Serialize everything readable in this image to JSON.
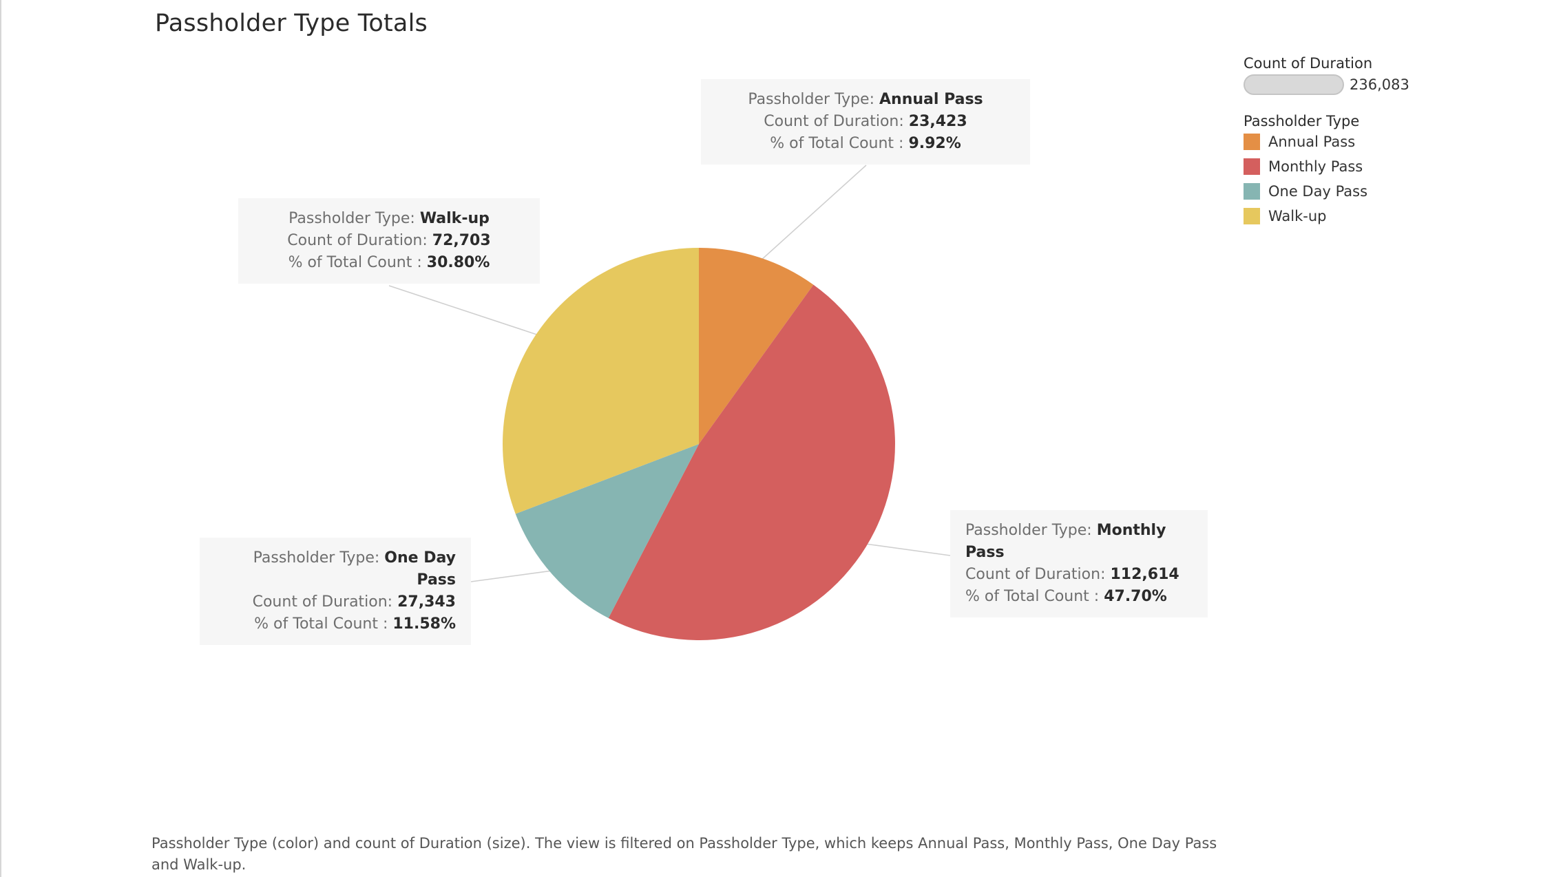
{
  "title": "Passholder Type Totals",
  "chart_data": {
    "type": "pie",
    "series_field": "Passholder Type",
    "measure": "Count of Duration",
    "total": 236083,
    "total_label": "236,083",
    "slices": [
      {
        "name": "Annual Pass",
        "value": 23423,
        "value_label": "23,423",
        "pct_label": "9.92%",
        "color": "#E48F45"
      },
      {
        "name": "Monthly Pass",
        "value": 112614,
        "value_label": "112,614",
        "pct_label": "47.70%",
        "color": "#D45F5E"
      },
      {
        "name": "One Day Pass",
        "value": 27343,
        "value_label": "27,343",
        "pct_label": "11.58%",
        "color": "#86B5B2"
      },
      {
        "name": "Walk-up",
        "value": 72703,
        "value_label": "72,703",
        "pct_label": "30.80%",
        "color": "#E6C85E"
      }
    ],
    "tooltip_labels": {
      "type": "Passholder Type: ",
      "count": "Count of Duration: ",
      "pct": "% of Total Count : "
    }
  },
  "legend": {
    "size_title": "Count of Duration",
    "size_value": "236,083",
    "color_title": "Passholder Type"
  },
  "caption": "Passholder Type (color) and count of Duration (size). The view is filtered on Passholder Type, which keeps Annual Pass, Monthly Pass, One Day Pass and Walk-up."
}
